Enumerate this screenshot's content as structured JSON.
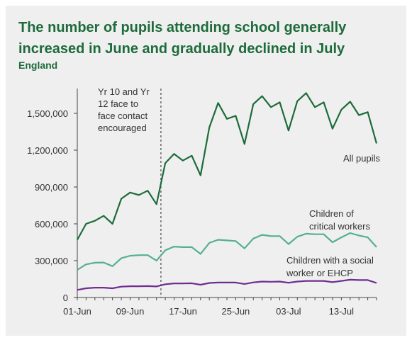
{
  "chart_data": {
    "type": "line",
    "title": "The number of pupils attending school generally increased in June and gradually declined in July",
    "subtitle": "England",
    "x": [
      "01-Jun",
      "02-Jun",
      "03-Jun",
      "04-Jun",
      "05-Jun",
      "08-Jun",
      "09-Jun",
      "10-Jun",
      "11-Jun",
      "12-Jun",
      "15-Jun",
      "16-Jun",
      "17-Jun",
      "18-Jun",
      "19-Jun",
      "22-Jun",
      "23-Jun",
      "24-Jun",
      "25-Jun",
      "26-Jun",
      "29-Jun",
      "30-Jun",
      "01-Jul",
      "02-Jul",
      "03-Jul",
      "06-Jul",
      "07-Jul",
      "08-Jul",
      "09-Jul",
      "10-Jul",
      "13-Jul",
      "14-Jul",
      "15-Jul",
      "16-Jul",
      "17-Jul"
    ],
    "x_tick_labels": [
      "01-Jun",
      "09-Jun",
      "17-Jun",
      "25-Jun",
      "03-Jul",
      "13-Jul"
    ],
    "y_ticks": [
      0,
      300000,
      600000,
      900000,
      1200000,
      1500000
    ],
    "y_tick_labels": [
      "0",
      "300,000",
      "600,000",
      "900,000",
      "1,200,000",
      "1,500,000"
    ],
    "ylim": [
      0,
      1700000
    ],
    "series": [
      {
        "name": "All pupils",
        "color": "#1d6b3b",
        "values": [
          470000,
          600000,
          625000,
          665000,
          600000,
          805000,
          855000,
          835000,
          870000,
          760000,
          1095000,
          1170000,
          1115000,
          1155000,
          995000,
          1385000,
          1585000,
          1455000,
          1480000,
          1250000,
          1575000,
          1640000,
          1550000,
          1590000,
          1360000,
          1600000,
          1665000,
          1550000,
          1590000,
          1375000,
          1530000,
          1595000,
          1485000,
          1510000,
          1255000
        ]
      },
      {
        "name": "Children of critical workers",
        "color": "#54b092",
        "values": [
          225000,
          270000,
          283000,
          285000,
          255000,
          320000,
          340000,
          345000,
          345000,
          300000,
          385000,
          415000,
          410000,
          410000,
          355000,
          445000,
          470000,
          465000,
          460000,
          400000,
          480000,
          510000,
          500000,
          500000,
          435000,
          495000,
          520000,
          515000,
          515000,
          450000,
          490000,
          525000,
          505000,
          490000,
          410000
        ]
      },
      {
        "name": "Children with a social worker or EHCP",
        "color": "#6f2c91",
        "values": [
          62000,
          75000,
          80000,
          80000,
          75000,
          88000,
          92000,
          92000,
          93000,
          90000,
          108000,
          115000,
          115000,
          116000,
          104000,
          118000,
          122000,
          122000,
          122000,
          110000,
          123000,
          130000,
          128000,
          130000,
          120000,
          130000,
          135000,
          135000,
          135000,
          125000,
          135000,
          145000,
          142000,
          142000,
          118000
        ]
      }
    ],
    "annotation": {
      "text_lines": [
        "Yr 10 and Yr",
        "12 face to",
        "face contact",
        "encouraged"
      ],
      "at": "15-Jun"
    },
    "series_labels": [
      {
        "lines": [
          "All pupils"
        ]
      },
      {
        "lines": [
          "Children of",
          "critical workers"
        ]
      },
      {
        "lines": [
          "Children with a social",
          "worker or EHCP"
        ]
      }
    ]
  }
}
